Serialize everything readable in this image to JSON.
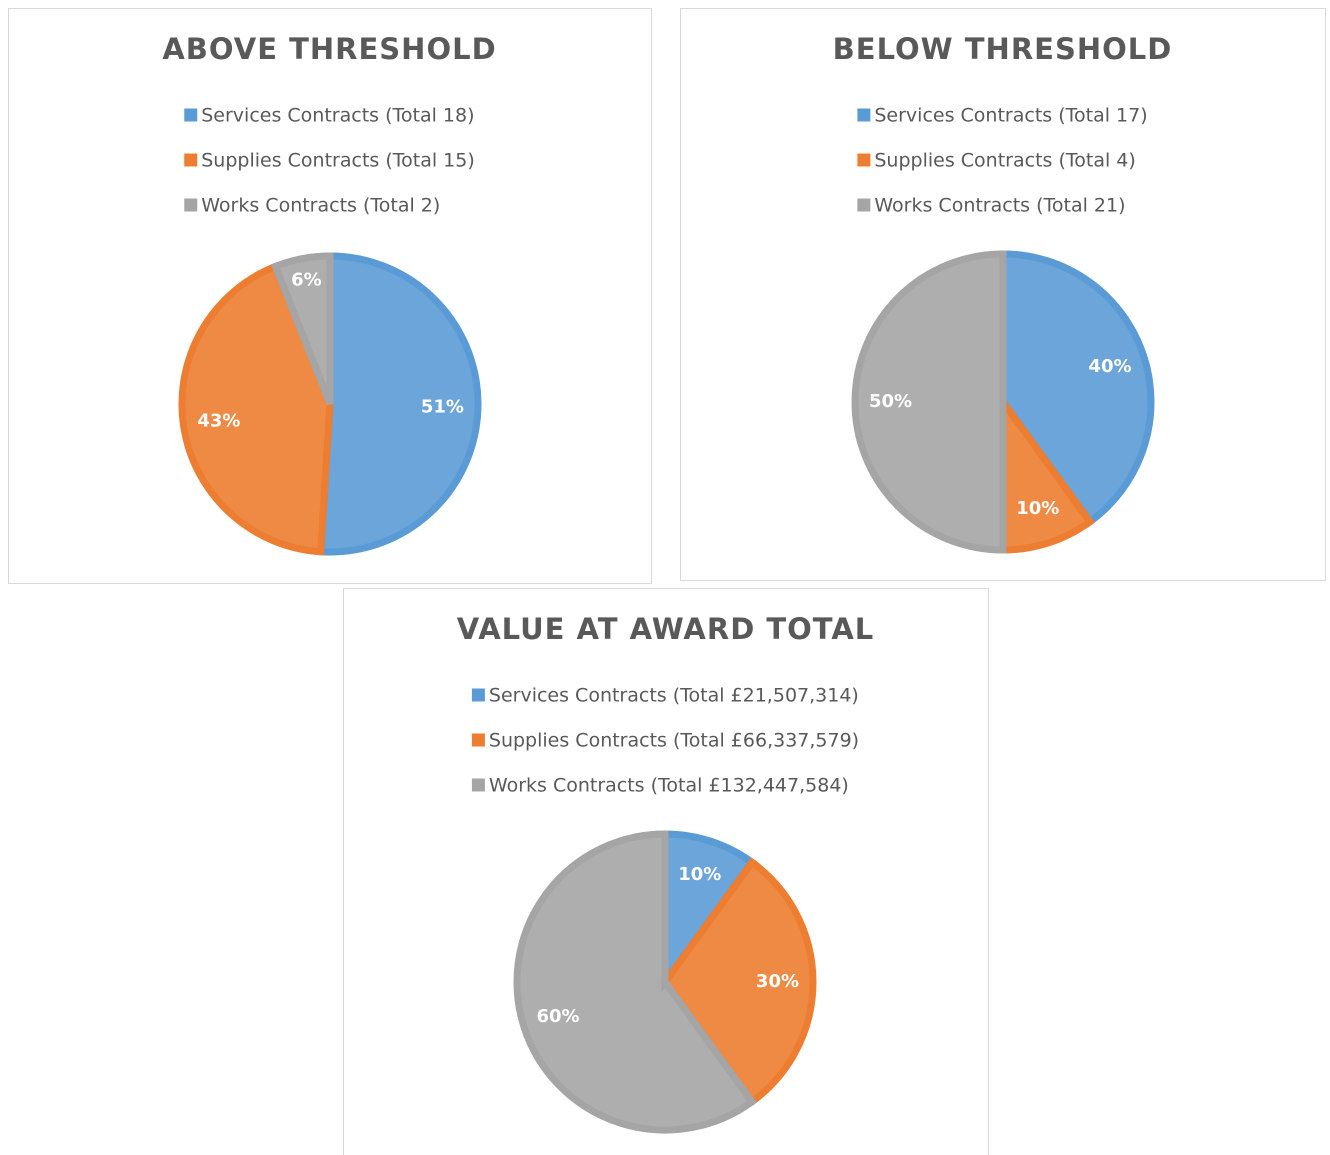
{
  "chart_data": [
    {
      "type": "pie",
      "title": "ABOVE THRESHOLD",
      "categories": [
        "Services Contracts (Total 18)",
        "Supplies Contracts (Total 15)",
        "Works Contracts (Total 2)"
      ],
      "values": [
        51,
        43,
        6
      ],
      "value_labels": [
        "51%",
        "43%",
        "6%"
      ],
      "colors": [
        "#5b9bd5",
        "#ed7d31",
        "#a5a5a5"
      ]
    },
    {
      "type": "pie",
      "title": "BELOW THRESHOLD",
      "categories": [
        "Services Contracts (Total 17)",
        "Supplies Contracts (Total 4)",
        "Works Contracts (Total 21)"
      ],
      "values": [
        40,
        10,
        50
      ],
      "value_labels": [
        "40%",
        "10%",
        "50%"
      ],
      "colors": [
        "#5b9bd5",
        "#ed7d31",
        "#a5a5a5"
      ]
    },
    {
      "type": "pie",
      "title": "VALUE AT AWARD TOTAL",
      "categories": [
        "Services Contracts (Total £21,507,314)",
        "Supplies Contracts (Total £66,337,579)",
        "Works Contracts (Total £132,447,584)"
      ],
      "values": [
        10,
        30,
        60
      ],
      "value_labels": [
        "10%",
        "30%",
        "60%"
      ],
      "colors": [
        "#5b9bd5",
        "#ed7d31",
        "#a5a5a5"
      ]
    }
  ]
}
